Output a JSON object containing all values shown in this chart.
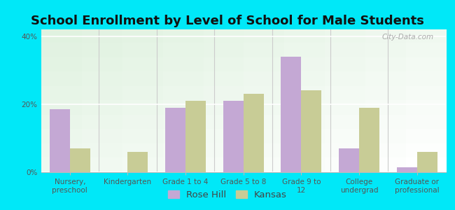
{
  "title": "School Enrollment by Level of School for Male Students",
  "categories": [
    "Nursery,\npreschool",
    "Kindergarten",
    "Grade 1 to 4",
    "Grade 5 to 8",
    "Grade 9 to\n12",
    "College\nundergrad",
    "Graduate or\nprofessional"
  ],
  "rose_hill": [
    18.5,
    0,
    19,
    21,
    34,
    7,
    1.5
  ],
  "kansas": [
    7,
    6,
    21,
    23,
    24,
    19,
    6
  ],
  "rose_hill_color": "#c4a8d4",
  "kansas_color": "#c8cc96",
  "background_color": "#00e8f8",
  "ylim": [
    0,
    42
  ],
  "yticks": [
    0,
    20,
    40
  ],
  "ytick_labels": [
    "0%",
    "20%",
    "40%"
  ],
  "bar_width": 0.35,
  "legend_rose_hill": "Rose Hill",
  "legend_kansas": "Kansas",
  "title_fontsize": 13,
  "tick_fontsize": 7.5,
  "legend_fontsize": 9.5
}
